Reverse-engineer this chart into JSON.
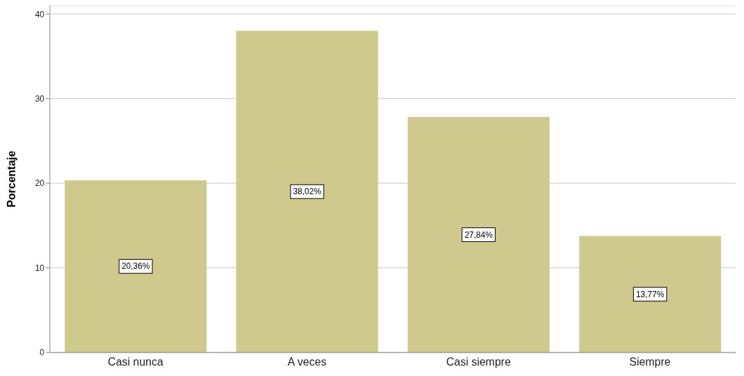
{
  "chart_data": {
    "type": "bar",
    "ylabel": "Porcentaje",
    "categories": [
      "Casi nunca",
      "A veces",
      "Casi siempre",
      "Siempre"
    ],
    "values": [
      20.36,
      38.02,
      27.84,
      13.77
    ],
    "value_labels": [
      "20,36%",
      "38,02%",
      "27,84%",
      "13,77%"
    ],
    "color": "#d0c98e",
    "ylim": [
      0,
      41
    ],
    "yticks": [
      0,
      10,
      20,
      30,
      40
    ],
    "grid": "y"
  }
}
